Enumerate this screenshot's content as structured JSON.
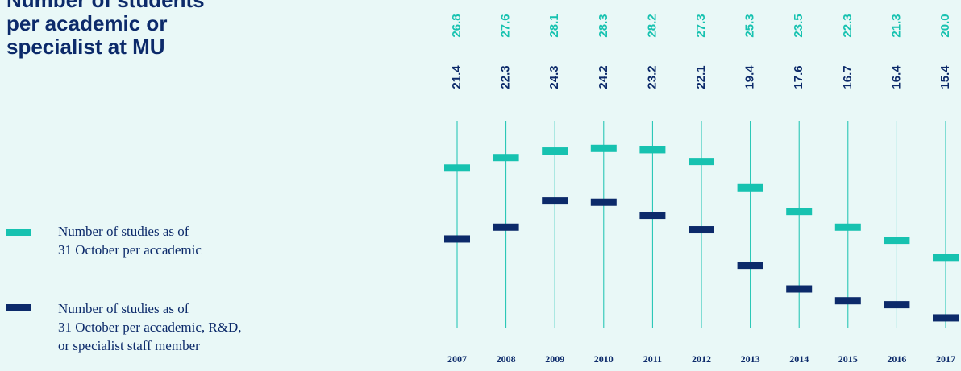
{
  "chart_data": {
    "type": "dot-range",
    "title": "Number of students\nper academic or\nspecialist at MU",
    "categories": [
      "2007",
      "2008",
      "2009",
      "2010",
      "2011",
      "2012",
      "2013",
      "2014",
      "2015",
      "2016",
      "2017"
    ],
    "series": [
      {
        "name": "Number of studies as of\n31 October per accademic",
        "color": "#17c2b0",
        "values": [
          26.8,
          27.6,
          28.1,
          28.3,
          28.2,
          27.3,
          25.3,
          23.5,
          22.3,
          21.3,
          20.0
        ],
        "value_labels": [
          "26.8",
          "27.6",
          "28.1",
          "28.3",
          "28.2",
          "27.3",
          "25.3",
          "23.5",
          "22.3",
          "21.3",
          "20.0"
        ]
      },
      {
        "name": "Number of studies as of\n31 October per accademic, R&D,\nor specialist staff member",
        "color": "#0c2a6a",
        "values": [
          21.4,
          22.3,
          24.3,
          24.2,
          23.2,
          22.1,
          19.4,
          17.6,
          16.7,
          16.4,
          15.4
        ],
        "value_labels": [
          "21.4",
          "22.3",
          "24.3",
          "24.2",
          "23.2",
          "22.1",
          "19.4",
          "17.6",
          "16.7",
          "16.4",
          "15.4"
        ]
      }
    ],
    "ylim": [
      14.6,
      30.4
    ]
  }
}
